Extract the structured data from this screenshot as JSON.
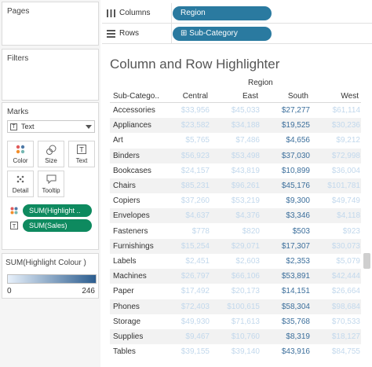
{
  "sidebar": {
    "pages_title": "Pages",
    "filters_title": "Filters",
    "marks": {
      "title": "Marks",
      "type_label": "Text",
      "buttons": {
        "color": "Color",
        "size": "Size",
        "text": "Text",
        "detail": "Detail",
        "tooltip": "Tooltip"
      },
      "pills": [
        {
          "label": "SUM(Highlight ..",
          "icon": "color-dots-icon"
        },
        {
          "label": "SUM(Sales)",
          "icon": "text-icon"
        }
      ]
    },
    "legend": {
      "title": "SUM(Highlight Colour )",
      "min": "0",
      "max": "246",
      "gradient_from": "#e8f1fb",
      "gradient_to": "#2c5d8f"
    }
  },
  "shelves": {
    "columns": {
      "label": "Columns",
      "pill": "Region",
      "icon": "columns-icon"
    },
    "rows": {
      "label": "Rows",
      "pill": "⊞ Sub-Category",
      "icon": "rows-icon"
    }
  },
  "view": {
    "title": "Column and Row Highlighter",
    "region_header": "Region",
    "subcategory_header": "Sub-Catego..",
    "columns": [
      "Central",
      "East",
      "South",
      "West"
    ],
    "highlighted_column": "South",
    "highlight_color": "#3c6f9c",
    "faded_color": "#c2d8ec",
    "rows": [
      {
        "name": "Accessories",
        "values": [
          "$33,956",
          "$45,033",
          "$27,277",
          "$61,114"
        ]
      },
      {
        "name": "Appliances",
        "values": [
          "$23,582",
          "$34,188",
          "$19,525",
          "$30,236"
        ]
      },
      {
        "name": "Art",
        "values": [
          "$5,765",
          "$7,486",
          "$4,656",
          "$9,212"
        ]
      },
      {
        "name": "Binders",
        "values": [
          "$56,923",
          "$53,498",
          "$37,030",
          "$72,998"
        ]
      },
      {
        "name": "Bookcases",
        "values": [
          "$24,157",
          "$43,819",
          "$10,899",
          "$36,004"
        ]
      },
      {
        "name": "Chairs",
        "values": [
          "$85,231",
          "$96,261",
          "$45,176",
          "$101,781"
        ]
      },
      {
        "name": "Copiers",
        "values": [
          "$37,260",
          "$53,219",
          "$9,300",
          "$49,749"
        ]
      },
      {
        "name": "Envelopes",
        "values": [
          "$4,637",
          "$4,376",
          "$3,346",
          "$4,118"
        ]
      },
      {
        "name": "Fasteners",
        "values": [
          "$778",
          "$820",
          "$503",
          "$923"
        ]
      },
      {
        "name": "Furnishings",
        "values": [
          "$15,254",
          "$29,071",
          "$17,307",
          "$30,073"
        ]
      },
      {
        "name": "Labels",
        "values": [
          "$2,451",
          "$2,603",
          "$2,353",
          "$5,079"
        ]
      },
      {
        "name": "Machines",
        "values": [
          "$26,797",
          "$66,106",
          "$53,891",
          "$42,444"
        ]
      },
      {
        "name": "Paper",
        "values": [
          "$17,492",
          "$20,173",
          "$14,151",
          "$26,664"
        ]
      },
      {
        "name": "Phones",
        "values": [
          "$72,403",
          "$100,615",
          "$58,304",
          "$98,684"
        ]
      },
      {
        "name": "Storage",
        "values": [
          "$49,930",
          "$71,613",
          "$35,768",
          "$70,533"
        ]
      },
      {
        "name": "Supplies",
        "values": [
          "$9,467",
          "$10,760",
          "$8,319",
          "$18,127"
        ]
      },
      {
        "name": "Tables",
        "values": [
          "$39,155",
          "$39,140",
          "$43,916",
          "$84,755"
        ]
      }
    ]
  }
}
